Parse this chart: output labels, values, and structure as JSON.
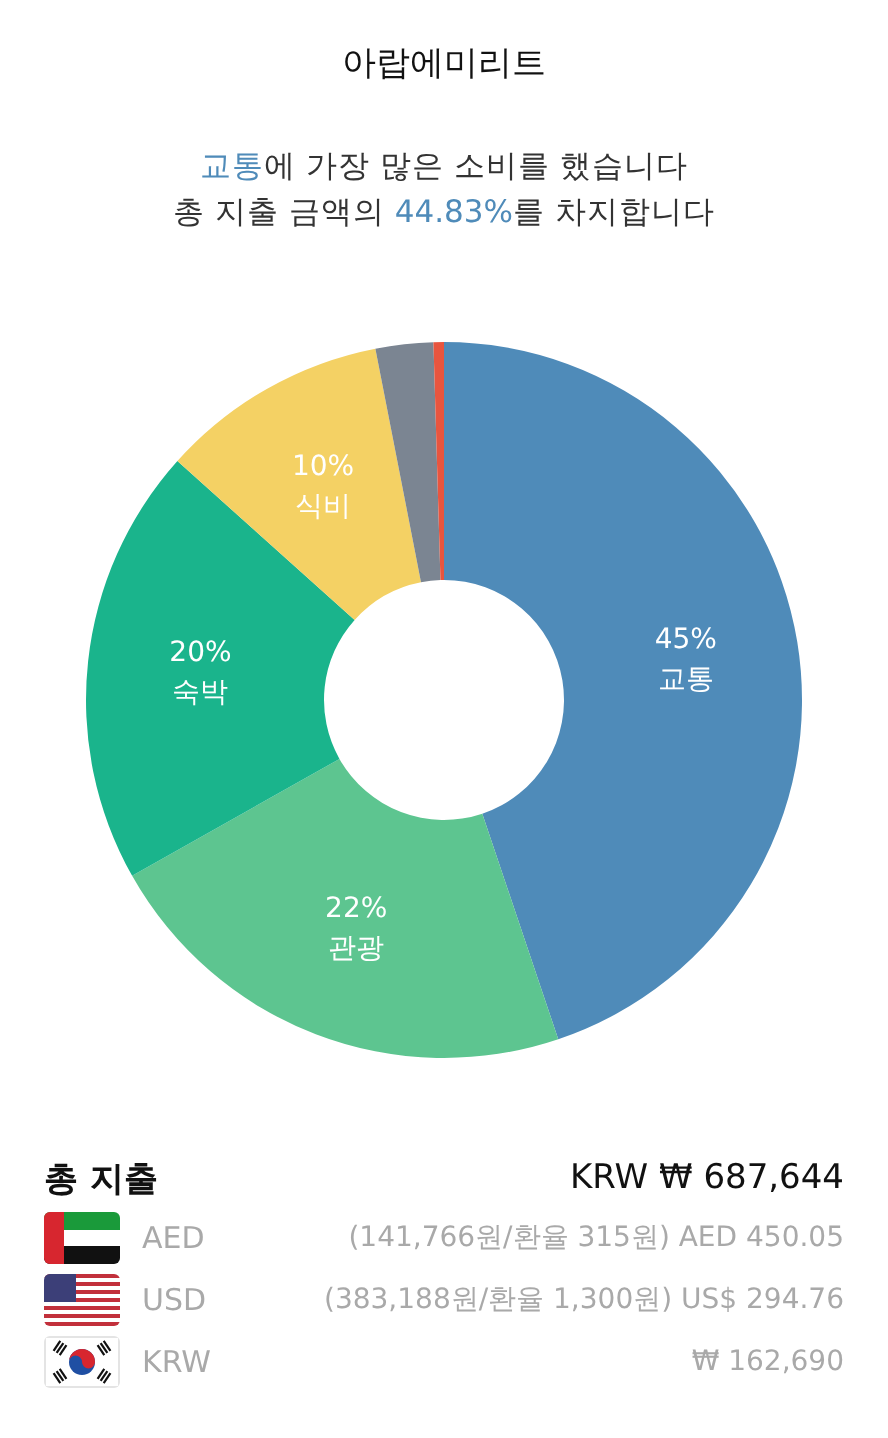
{
  "chart_data": {
    "type": "donut",
    "title": "아랍에미리트",
    "subtitle": "교통에 가장 많은 소비를 했습니다\n총 지출 금액의 44.83%를 차지합니다",
    "categories": [
      "교통",
      "관광",
      "숙박",
      "식비",
      null,
      null
    ],
    "values": [
      44.83,
      22,
      19.8,
      10.3,
      2.6,
      0.47
    ],
    "colors": [
      "#4f8bb9",
      "#5dc590",
      "#1ab48c",
      "#f4d164",
      "#7b8592",
      "#e8553f"
    ],
    "value_labels": [
      "45%",
      "22%",
      "20%",
      "10%",
      null,
      null
    ],
    "annotations": [
      "총 지출",
      "KRW ₩ 687,644",
      "AED",
      "(141,766원/환율 315원) AED 450.05",
      "USD",
      "(383,188원/환율 1,300원) US$ 294.76",
      "KRW",
      "₩ 162,690"
    ]
  }
}
